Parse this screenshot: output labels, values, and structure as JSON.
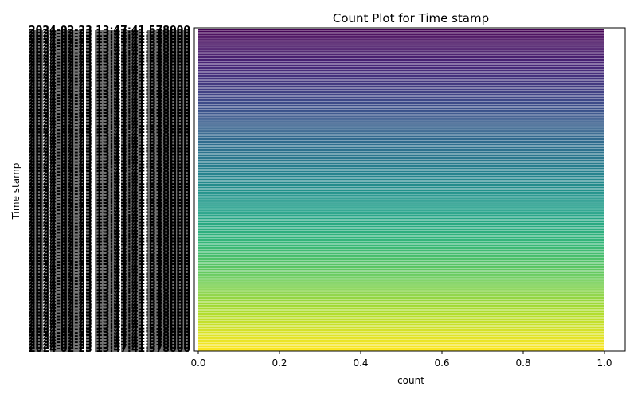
{
  "chart_data": {
    "type": "bar",
    "orientation": "horizontal",
    "title": "Count Plot for Time stamp",
    "xlabel": "count",
    "ylabel": "Time stamp",
    "xlim": [
      0,
      1.05
    ],
    "xticks": [
      "0.0",
      "0.2",
      "0.4",
      "0.6",
      "0.8",
      "1.0"
    ],
    "category_count": 200,
    "value_per_category": 1,
    "visible_category_fragment": "2024-02-23 13:47:41.578000",
    "palette": "viridis",
    "grid": false,
    "legend": "none"
  }
}
